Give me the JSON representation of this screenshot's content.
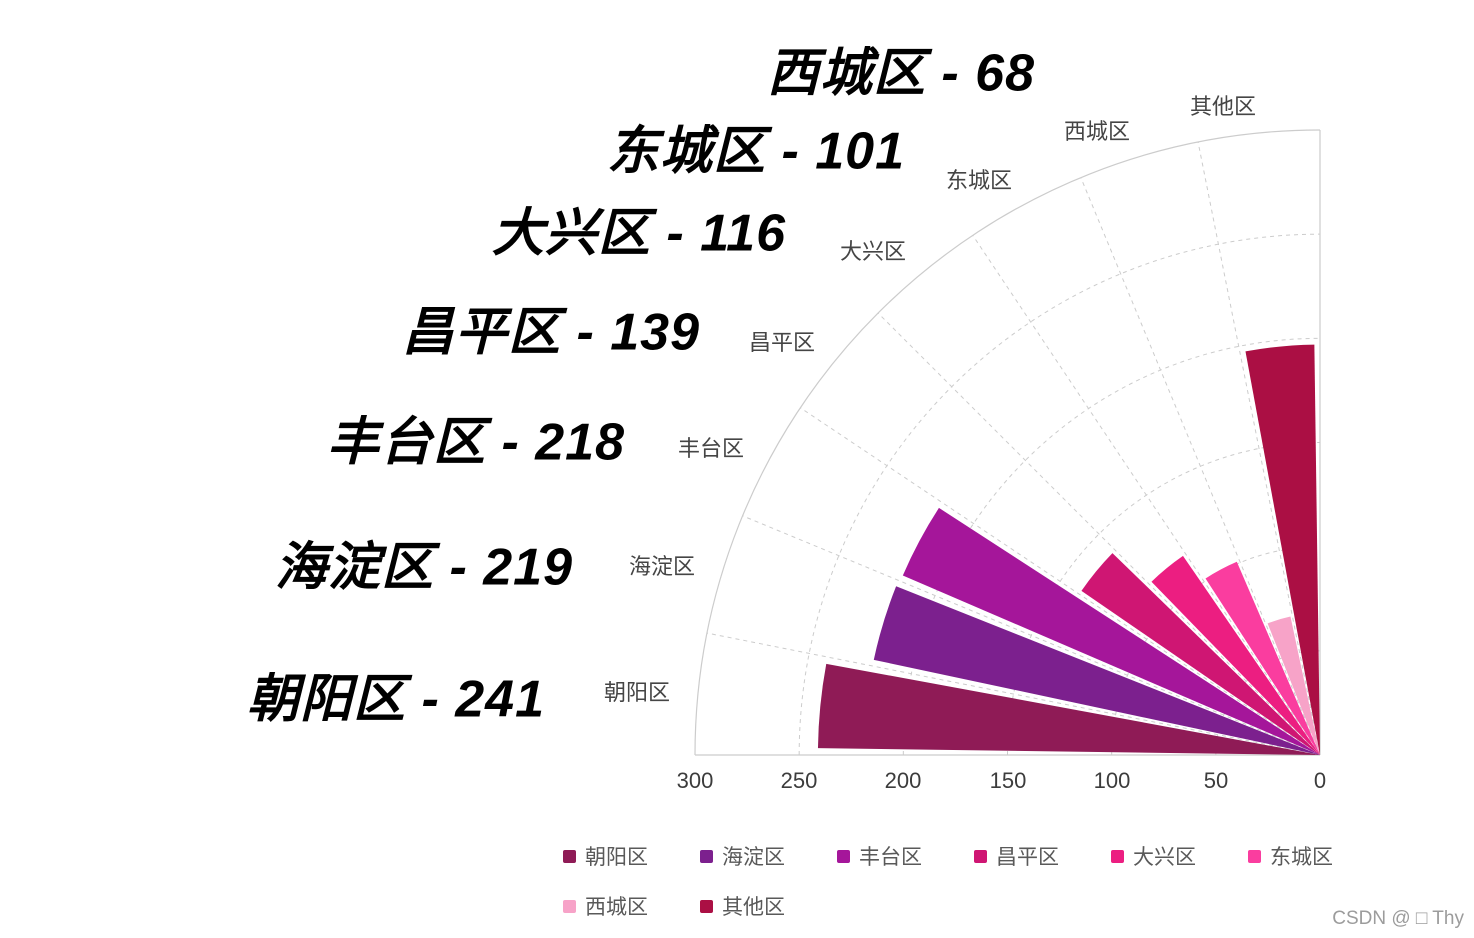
{
  "chart_data": {
    "type": "bar",
    "subtype": "polar-rose-quarter",
    "title": "",
    "angular_axis": {
      "categories": [
        "朝阳区",
        "海淀区",
        "丰台区",
        "昌平区",
        "大兴区",
        "东城区",
        "西城区",
        "其他区"
      ],
      "span_deg": 90
    },
    "radial_axis": {
      "min": 0,
      "max": 300,
      "tick_labels": [
        "300",
        "250",
        "200",
        "150",
        "100",
        "50",
        "0"
      ]
    },
    "grid": true,
    "series": [
      {
        "name": "朝阳区",
        "value": 241,
        "color": "#8f1b56",
        "big_label": "朝阳区 - 241"
      },
      {
        "name": "海淀区",
        "value": 219,
        "color": "#7c208e",
        "big_label": "海淀区 - 219"
      },
      {
        "name": "丰台区",
        "value": 218,
        "color": "#a5169a",
        "big_label": "丰台区 - 218"
      },
      {
        "name": "昌平区",
        "value": 139,
        "color": "#cf1673",
        "big_label": "昌平区 - 139"
      },
      {
        "name": "大兴区",
        "value": 116,
        "color": "#ec1e81",
        "big_label": "大兴区 - 116"
      },
      {
        "name": "东城区",
        "value": 101,
        "color": "#fa3d9f",
        "big_label": "东城区 - 101"
      },
      {
        "name": "西城区",
        "value": 68,
        "color": "#f7a3c8",
        "big_label": "西城区 - 68"
      },
      {
        "name": "其他区",
        "value": 197,
        "color": "#ab0f44",
        "big_label": ""
      }
    ],
    "legend": {
      "position": "bottom",
      "entries": [
        "朝阳区",
        "海淀区",
        "丰台区",
        "昌平区",
        "大兴区",
        "东城区",
        "西城区",
        "其他区"
      ]
    }
  },
  "watermark": "CSDN @ □ Thy"
}
